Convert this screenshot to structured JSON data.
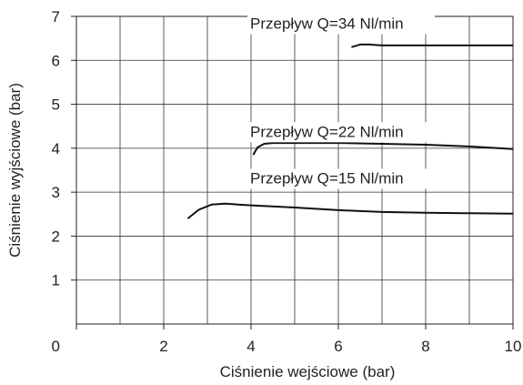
{
  "chart_data": {
    "type": "line",
    "title": "",
    "xlabel": "Ciśnienie wejściowe (bar)",
    "ylabel": "Ciśnienie wyjściowe (bar)",
    "xlim": [
      0,
      10
    ],
    "ylim": [
      0,
      7
    ],
    "x_tick_labels": [
      "0",
      "2",
      "4",
      "6",
      "8",
      "10"
    ],
    "x_tick_values": [
      0,
      2,
      4,
      6,
      8,
      10
    ],
    "y_tick_labels": [
      "1",
      "2",
      "3",
      "4",
      "5",
      "6",
      "7"
    ],
    "y_tick_values": [
      1,
      2,
      3,
      4,
      5,
      6,
      7
    ],
    "grid": true,
    "legend": "none",
    "series": [
      {
        "name": "Przepływ Q=34 Nl/min",
        "x": [
          6.3,
          6.5,
          6.7,
          7.0,
          8.0,
          9.0,
          10.0
        ],
        "y": [
          6.3,
          6.36,
          6.36,
          6.34,
          6.34,
          6.34,
          6.34
        ]
      },
      {
        "name": "Przepływ Q=22 Nl/min",
        "x": [
          4.05,
          4.15,
          4.3,
          4.5,
          5.0,
          6.0,
          7.0,
          8.0,
          9.0,
          10.0
        ],
        "y": [
          3.85,
          4.02,
          4.1,
          4.12,
          4.12,
          4.12,
          4.1,
          4.08,
          4.04,
          3.98
        ],
        "label_at": [
          4.0,
          4.26
        ]
      },
      {
        "name": "Przepływ Q=15 Nl/min",
        "x": [
          2.55,
          2.8,
          3.1,
          3.4,
          3.7,
          4.0,
          5.0,
          6.0,
          7.0,
          8.0,
          9.0,
          10.0
        ],
        "y": [
          2.4,
          2.6,
          2.72,
          2.74,
          2.72,
          2.7,
          2.65,
          2.59,
          2.55,
          2.53,
          2.52,
          2.51
        ]
      }
    ]
  }
}
